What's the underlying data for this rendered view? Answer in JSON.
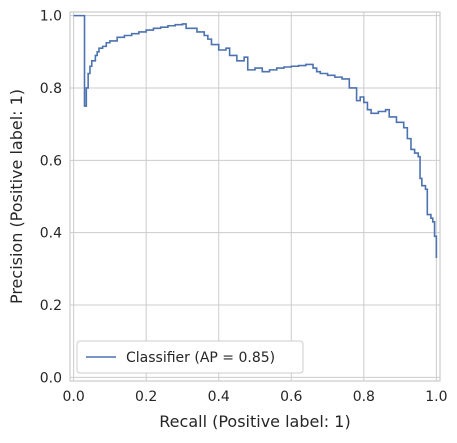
{
  "chart_data": {
    "type": "line",
    "xlabel": "Recall (Positive label: 1)",
    "ylabel": "Precision (Positive label: 1)",
    "xlim": [
      -0.01,
      1.01
    ],
    "ylim": [
      -0.01,
      1.01
    ],
    "x_ticks": [
      "0.0",
      "0.2",
      "0.4",
      "0.6",
      "0.8",
      "1.0"
    ],
    "y_ticks": [
      "0.0",
      "0.2",
      "0.4",
      "0.6",
      "0.8",
      "1.0"
    ],
    "x_tick_values": [
      0,
      0.2,
      0.4,
      0.6,
      0.8,
      1.0
    ],
    "y_tick_values": [
      0,
      0.2,
      0.4,
      0.6,
      0.8,
      1.0
    ],
    "grid": true,
    "legend_position": "lower-left",
    "series": [
      {
        "name": "Classifier (AP = 0.85)",
        "color": "#4c72b0",
        "step": true,
        "points": [
          [
            0.0,
            1.0
          ],
          [
            0.03,
            1.0
          ],
          [
            0.03,
            0.75
          ],
          [
            0.035,
            0.8
          ],
          [
            0.04,
            0.84
          ],
          [
            0.045,
            0.86
          ],
          [
            0.05,
            0.875
          ],
          [
            0.06,
            0.89
          ],
          [
            0.065,
            0.9
          ],
          [
            0.07,
            0.91
          ],
          [
            0.08,
            0.915
          ],
          [
            0.09,
            0.925
          ],
          [
            0.1,
            0.93
          ],
          [
            0.12,
            0.94
          ],
          [
            0.14,
            0.945
          ],
          [
            0.16,
            0.95
          ],
          [
            0.18,
            0.955
          ],
          [
            0.2,
            0.96
          ],
          [
            0.22,
            0.965
          ],
          [
            0.24,
            0.968
          ],
          [
            0.26,
            0.972
          ],
          [
            0.28,
            0.975
          ],
          [
            0.3,
            0.977
          ],
          [
            0.31,
            0.965
          ],
          [
            0.34,
            0.955
          ],
          [
            0.36,
            0.945
          ],
          [
            0.37,
            0.935
          ],
          [
            0.38,
            0.92
          ],
          [
            0.4,
            0.905
          ],
          [
            0.42,
            0.91
          ],
          [
            0.43,
            0.89
          ],
          [
            0.45,
            0.875
          ],
          [
            0.47,
            0.885
          ],
          [
            0.48,
            0.85
          ],
          [
            0.5,
            0.855
          ],
          [
            0.52,
            0.845
          ],
          [
            0.54,
            0.85
          ],
          [
            0.56,
            0.855
          ],
          [
            0.58,
            0.858
          ],
          [
            0.6,
            0.86
          ],
          [
            0.62,
            0.862
          ],
          [
            0.64,
            0.865
          ],
          [
            0.66,
            0.855
          ],
          [
            0.67,
            0.845
          ],
          [
            0.68,
            0.84
          ],
          [
            0.7,
            0.835
          ],
          [
            0.72,
            0.83
          ],
          [
            0.74,
            0.825
          ],
          [
            0.76,
            0.8
          ],
          [
            0.78,
            0.765
          ],
          [
            0.79,
            0.775
          ],
          [
            0.8,
            0.76
          ],
          [
            0.81,
            0.74
          ],
          [
            0.82,
            0.73
          ],
          [
            0.84,
            0.735
          ],
          [
            0.86,
            0.74
          ],
          [
            0.87,
            0.72
          ],
          [
            0.89,
            0.705
          ],
          [
            0.91,
            0.69
          ],
          [
            0.92,
            0.66
          ],
          [
            0.93,
            0.63
          ],
          [
            0.94,
            0.62
          ],
          [
            0.95,
            0.61
          ],
          [
            0.955,
            0.55
          ],
          [
            0.96,
            0.53
          ],
          [
            0.97,
            0.52
          ],
          [
            0.975,
            0.45
          ],
          [
            0.985,
            0.44
          ],
          [
            0.99,
            0.43
          ],
          [
            0.995,
            0.39
          ],
          [
            1.0,
            0.33
          ]
        ]
      }
    ]
  }
}
